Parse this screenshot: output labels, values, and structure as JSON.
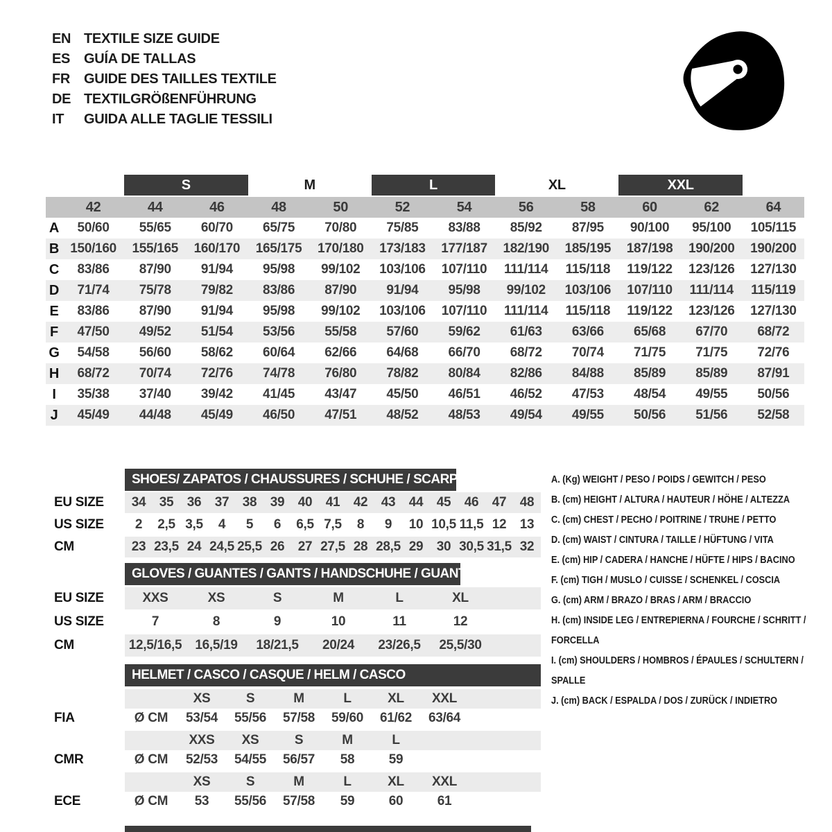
{
  "colors": {
    "dark_bar": "#3b3b3b",
    "gray_band": "#c4c4c4",
    "row_stripe": "#ededed",
    "sub_band": "#ebebeb",
    "text": "#3c3c3c",
    "black": "#141414",
    "white": "#ffffff"
  },
  "header": {
    "helmet_icon": "racing-helmet-icon",
    "languages": [
      {
        "code": "EN",
        "label": "TEXTILE SIZE GUIDE"
      },
      {
        "code": "ES",
        "label": "GUÍA DE TALLAS"
      },
      {
        "code": "FR",
        "label": "GUIDE DES TAILLES TEXTILE"
      },
      {
        "code": "DE",
        "label": "TEXTILGRÖßENFÜHRUNG"
      },
      {
        "code": "IT",
        "label": "GUIDA ALLE TAGLIE TESSILI"
      }
    ]
  },
  "main_table": {
    "size_labels": [
      {
        "text": "S",
        "boxed": true,
        "col": 2,
        "span": 2
      },
      {
        "text": "M",
        "boxed": false,
        "col": 4,
        "span": 2
      },
      {
        "text": "L",
        "boxed": true,
        "col": 6,
        "span": 2
      },
      {
        "text": "XL",
        "boxed": false,
        "col": 8,
        "span": 2
      },
      {
        "text": "XXL",
        "boxed": true,
        "col": 10,
        "span": 2
      }
    ],
    "columns": [
      "42",
      "44",
      "46",
      "48",
      "50",
      "52",
      "54",
      "56",
      "58",
      "60",
      "62",
      "64"
    ],
    "rows": [
      {
        "label": "A",
        "values": [
          "50/60",
          "55/65",
          "60/70",
          "65/75",
          "70/80",
          "75/85",
          "83/88",
          "85/92",
          "87/95",
          "90/100",
          "95/100",
          "105/115"
        ]
      },
      {
        "label": "B",
        "values": [
          "150/160",
          "155/165",
          "160/170",
          "165/175",
          "170/180",
          "173/183",
          "177/187",
          "182/190",
          "185/195",
          "187/198",
          "190/200",
          "190/200"
        ]
      },
      {
        "label": "C",
        "values": [
          "83/86",
          "87/90",
          "91/94",
          "95/98",
          "99/102",
          "103/106",
          "107/110",
          "111/114",
          "115/118",
          "119/122",
          "123/126",
          "127/130"
        ]
      },
      {
        "label": "D",
        "values": [
          "71/74",
          "75/78",
          "79/82",
          "83/86",
          "87/90",
          "91/94",
          "95/98",
          "99/102",
          "103/106",
          "107/110",
          "111/114",
          "115/119"
        ]
      },
      {
        "label": "E",
        "values": [
          "83/86",
          "87/90",
          "91/94",
          "95/98",
          "99/102",
          "103/106",
          "107/110",
          "111/114",
          "115/118",
          "119/122",
          "123/126",
          "127/130"
        ]
      },
      {
        "label": "F",
        "values": [
          "47/50",
          "49/52",
          "51/54",
          "53/56",
          "55/58",
          "57/60",
          "59/62",
          "61/63",
          "63/66",
          "65/68",
          "67/70",
          "68/72"
        ]
      },
      {
        "label": "G",
        "values": [
          "54/58",
          "56/60",
          "58/62",
          "60/64",
          "62/66",
          "64/68",
          "66/70",
          "68/72",
          "70/74",
          "71/75",
          "71/75",
          "72/76"
        ]
      },
      {
        "label": "H",
        "values": [
          "68/72",
          "70/74",
          "72/76",
          "74/78",
          "76/80",
          "78/82",
          "80/84",
          "82/86",
          "84/88",
          "85/89",
          "85/89",
          "87/91"
        ]
      },
      {
        "label": "I",
        "values": [
          "35/38",
          "37/40",
          "39/42",
          "41/45",
          "43/47",
          "45/50",
          "46/51",
          "46/52",
          "47/53",
          "48/54",
          "49/55",
          "50/56"
        ]
      },
      {
        "label": "J",
        "values": [
          "45/49",
          "44/48",
          "45/49",
          "46/50",
          "47/51",
          "48/52",
          "48/53",
          "49/54",
          "49/55",
          "50/56",
          "51/56",
          "52/58"
        ]
      }
    ]
  },
  "shoes": {
    "title": "SHOES/ ZAPATOS / CHAUSSURES / SCHUHE / SCARPE",
    "rows": [
      {
        "label": "EU SIZE",
        "band": true,
        "values": [
          "34",
          "35",
          "36",
          "37",
          "38",
          "39",
          "40",
          "41",
          "42",
          "43",
          "44",
          "45",
          "46",
          "47",
          "48"
        ]
      },
      {
        "label": "US SIZE",
        "band": false,
        "values": [
          "2",
          "2,5",
          "3,5",
          "4",
          "5",
          "6",
          "6,5",
          "7,5",
          "8",
          "9",
          "10",
          "10,5",
          "11,5",
          "12",
          "13"
        ]
      },
      {
        "label": "CM",
        "band": true,
        "values": [
          "23",
          "23,5",
          "24",
          "24,5",
          "25,5",
          "26",
          "27",
          "27,5",
          "28",
          "28,5",
          "29",
          "30",
          "30,5",
          "31,5",
          "32"
        ]
      }
    ]
  },
  "gloves": {
    "title": "GLOVES / GUANTES / GANTS / HANDSCHUHE / GUANTI",
    "rows": [
      {
        "label": "EU SIZE",
        "band": true,
        "values": [
          "XXS",
          "XS",
          "S",
          "M",
          "L",
          "XL"
        ]
      },
      {
        "label": "US SIZE",
        "band": false,
        "values": [
          "7",
          "8",
          "9",
          "10",
          "11",
          "12"
        ]
      },
      {
        "label": "CM",
        "band": true,
        "values": [
          "12,5/16,5",
          "16,5/19",
          "18/21,5",
          "20/24",
          "23/26,5",
          "25,5/30"
        ]
      }
    ]
  },
  "helmet": {
    "title": "HELMET / CASCO / CASQUE / HELM / CASCO",
    "groups": [
      {
        "label": "FIA",
        "unit": "Ø CM",
        "sizes": [
          "XS",
          "S",
          "M",
          "L",
          "XL",
          "XXL"
        ],
        "values": [
          "53/54",
          "55/56",
          "57/58",
          "59/60",
          "61/62",
          "63/64"
        ]
      },
      {
        "label": "CMR",
        "unit": "Ø CM",
        "sizes": [
          "XXS",
          "XS",
          "S",
          "M",
          "L",
          ""
        ],
        "values": [
          "52/53",
          "54/55",
          "56/57",
          "58",
          "59",
          ""
        ]
      },
      {
        "label": "ECE",
        "unit": "Ø CM",
        "sizes": [
          "XS",
          "S",
          "M",
          "L",
          "XL",
          "XXL"
        ],
        "values": [
          "53",
          "55/56",
          "57/58",
          "59",
          "60",
          "61"
        ]
      }
    ]
  },
  "legend": {
    "items": [
      "A. (Kg) WEIGHT / PESO / POIDS / GEWITCH / PESO",
      "B. (cm) HEIGHT / ALTURA / HAUTEUR / HÖHE / ALTEZZA",
      "C. (cm) CHEST / PECHO / POITRINE / TRUHE / PETTO",
      "D. (cm) WAIST / CINTURA / TAILLE / HÜFTUNG / VITA",
      "E. (cm) HIP / CADERA / HANCHE / HÜFTE / HIPS /  BACINO",
      "F. (cm) TIGH / MUSLO / CUISSE / SCHENKEL / COSCIA",
      "G. (cm) ARM / BRAZO / BRAS / ARM / BRACCIO",
      "H. (cm) INSIDE LEG / ENTREPIERNA / FOURCHE / SCHRITT / FORCELLA",
      "I. (cm) SHOULDERS / HOMBROS / ÉPAULES / SCHULTERN / SPALLE",
      "J. (cm) BACK / ESPALDA / DOS / ZURÜCK / INDIETRO"
    ]
  }
}
